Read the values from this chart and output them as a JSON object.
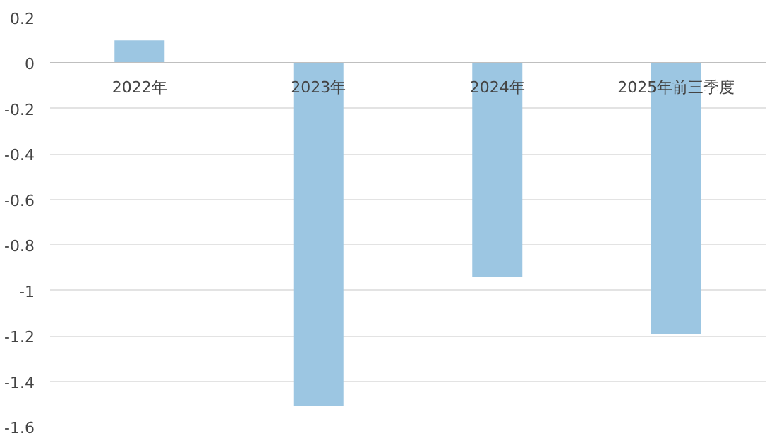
{
  "chart_data": {
    "type": "bar",
    "categories": [
      "2022年",
      "2023年",
      "2024年",
      "2025年前三季度"
    ],
    "values": [
      0.1,
      -1.51,
      -0.94,
      -1.19
    ],
    "color": "#9cc6e2",
    "ylim": [
      -1.6,
      0.2
    ],
    "yticks": [
      0.2,
      0,
      {
        "value": -0.2,
        "label": "-0.2"
      },
      {
        "value": -0.4,
        "label": "-0.4"
      },
      {
        "value": -0.6,
        "label": "-0.6"
      },
      {
        "value": -0.8,
        "label": "-0.8"
      },
      -1,
      {
        "value": -1.2,
        "label": "-1.2"
      },
      {
        "value": -1.4,
        "label": "-1.4"
      },
      {
        "value": -1.6,
        "label": "-1.6"
      }
    ],
    "grid": "y"
  }
}
